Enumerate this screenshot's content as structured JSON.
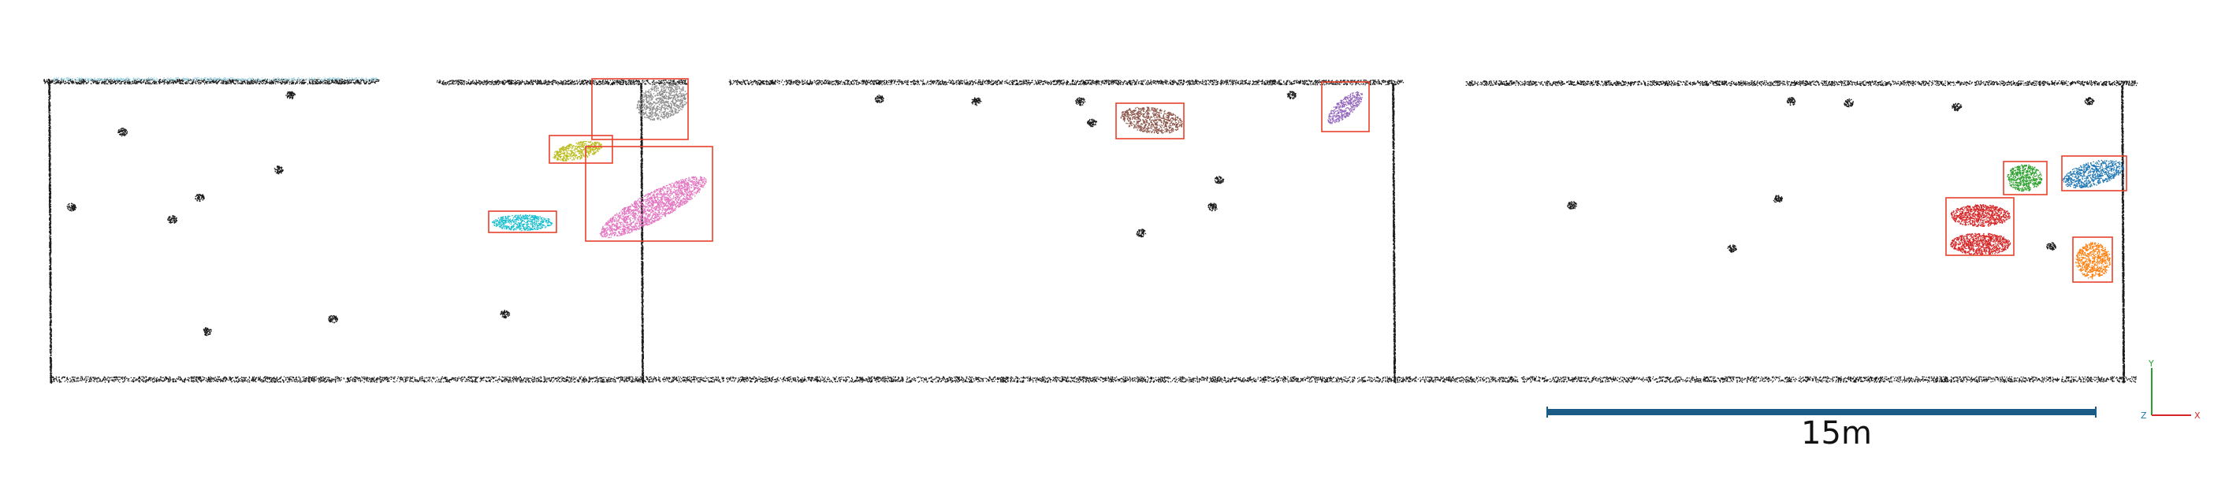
{
  "scale": {
    "label": "15m",
    "color": "#1b5c86"
  },
  "axes": {
    "x": "X",
    "y": "Y",
    "z": "Z",
    "x_color": "#d62728",
    "y_color": "#2ca02c",
    "z_color": "#1f77b4"
  },
  "clusters": [
    {
      "name": "gray",
      "color": "#8c8c8c"
    },
    {
      "name": "olive",
      "color": "#bcbd22"
    },
    {
      "name": "pink",
      "color": "#e377c2"
    },
    {
      "name": "cyan",
      "color": "#17becf"
    },
    {
      "name": "brown",
      "color": "#8c564b"
    },
    {
      "name": "purple",
      "color": "#9467bd"
    },
    {
      "name": "green",
      "color": "#2ca02c"
    },
    {
      "name": "blue",
      "color": "#1f77b4"
    },
    {
      "name": "red",
      "color": "#d62728"
    },
    {
      "name": "orange",
      "color": "#ff7f0e"
    }
  ],
  "bbox_color": "#e8412c",
  "wall_color": "#1a1a1a"
}
